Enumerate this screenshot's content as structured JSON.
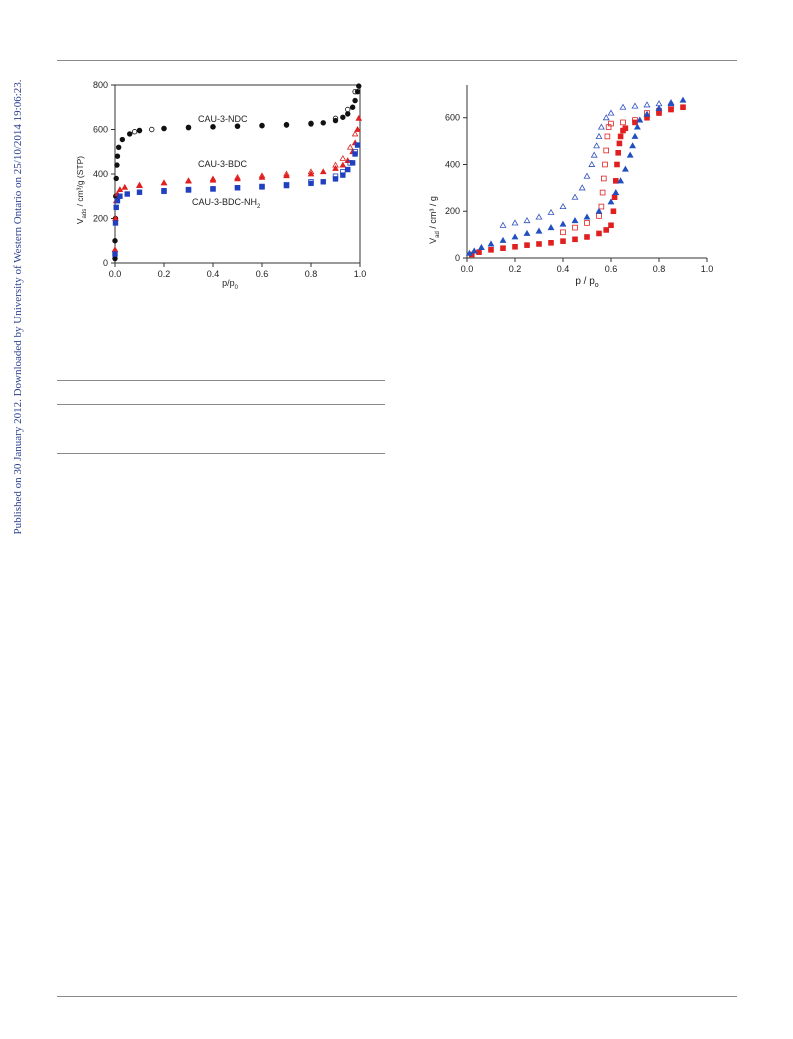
{
  "sidebar_note": "Published on 30 January 2012. Downloaded by University of Western Ontario on 25/10/2014 19:06:23.",
  "chart_data": [
    {
      "type": "scatter",
      "title": "",
      "xlabel": "p/p0",
      "ylabel": "V_ads / cm³/g (STP)",
      "xlim": [
        0,
        1.0
      ],
      "ylim": [
        0,
        800
      ],
      "xticks": [
        "0.0",
        "0.2",
        "0.4",
        "0.6",
        "0.8",
        "1.0"
      ],
      "yticks": [
        "0",
        "200",
        "400",
        "600",
        "800"
      ],
      "annotations": [
        "CAU-3-NDC",
        "CAU-3-BDC",
        "CAU-3-BDC-NH2"
      ],
      "series": [
        {
          "name": "CAU-3-NDC",
          "color": "#111111",
          "marker": "circle",
          "filled": true,
          "x": [
            0.0,
            0.0,
            0.002,
            0.003,
            0.005,
            0.008,
            0.01,
            0.015,
            0.03,
            0.06,
            0.1,
            0.2,
            0.3,
            0.4,
            0.5,
            0.6,
            0.7,
            0.8,
            0.85,
            0.9,
            0.93,
            0.95,
            0.97,
            0.98,
            0.99,
            0.995
          ],
          "y": [
            20,
            100,
            200,
            300,
            380,
            440,
            480,
            520,
            555,
            580,
            595,
            605,
            610,
            612,
            615,
            617,
            620,
            625,
            630,
            640,
            655,
            670,
            700,
            730,
            770,
            795
          ]
        },
        {
          "name": "CAU-3-NDC desorption",
          "color": "#111111",
          "marker": "circle",
          "filled": false,
          "x": [
            0.98,
            0.95,
            0.9,
            0.8,
            0.7,
            0.6,
            0.5,
            0.4,
            0.3,
            0.2,
            0.15,
            0.1,
            0.08
          ],
          "y": [
            770,
            690,
            650,
            628,
            622,
            618,
            615,
            612,
            608,
            604,
            600,
            596,
            590
          ]
        },
        {
          "name": "CAU-3-BDC",
          "color": "#e02020",
          "marker": "triangle",
          "filled": true,
          "x": [
            0.0,
            0.002,
            0.005,
            0.01,
            0.02,
            0.04,
            0.1,
            0.2,
            0.3,
            0.4,
            0.5,
            0.6,
            0.7,
            0.8,
            0.85,
            0.9,
            0.93,
            0.95,
            0.97,
            0.98,
            0.99,
            0.995
          ],
          "y": [
            60,
            200,
            280,
            310,
            330,
            340,
            350,
            360,
            368,
            372,
            378,
            385,
            392,
            400,
            410,
            425,
            440,
            460,
            500,
            540,
            600,
            650
          ]
        },
        {
          "name": "CAU-3-BDC desorption",
          "color": "#e02020",
          "marker": "triangle",
          "filled": false,
          "x": [
            0.98,
            0.96,
            0.93,
            0.9,
            0.8,
            0.7,
            0.6,
            0.5,
            0.4,
            0.3,
            0.2,
            0.1
          ],
          "y": [
            580,
            520,
            470,
            440,
            410,
            400,
            392,
            385,
            378,
            370,
            360,
            348
          ]
        },
        {
          "name": "CAU-3-BDC-NH2",
          "color": "#2040c0",
          "marker": "square",
          "filled": true,
          "x": [
            0.0,
            0.002,
            0.005,
            0.01,
            0.02,
            0.05,
            0.1,
            0.2,
            0.3,
            0.4,
            0.5,
            0.6,
            0.7,
            0.8,
            0.85,
            0.9,
            0.93,
            0.95,
            0.97,
            0.98,
            0.99
          ],
          "y": [
            40,
            180,
            250,
            280,
            300,
            310,
            318,
            325,
            330,
            333,
            338,
            342,
            348,
            358,
            365,
            378,
            395,
            420,
            450,
            490,
            530
          ]
        },
        {
          "name": "CAU-3-BDC-NH2 desorption",
          "color": "#2040c0",
          "marker": "square",
          "filled": false,
          "x": [
            0.98,
            0.96,
            0.93,
            0.9,
            0.8,
            0.7,
            0.6,
            0.5,
            0.4,
            0.3,
            0.2
          ],
          "y": [
            500,
            450,
            410,
            390,
            365,
            352,
            344,
            338,
            333,
            328,
            322
          ]
        }
      ]
    },
    {
      "type": "scatter",
      "title": "",
      "xlabel": "p / p0",
      "ylabel": "V_ad / cm³ / g",
      "xlim": [
        0,
        1.0
      ],
      "ylim": [
        0,
        740
      ],
      "xticks": [
        "0.0",
        "0.2",
        "0.4",
        "0.6",
        "0.8",
        "1.0"
      ],
      "yticks": [
        "0",
        "200",
        "400",
        "600"
      ],
      "series": [
        {
          "name": "red adsorption",
          "color": "#e02020",
          "marker": "square",
          "filled": true,
          "x": [
            0.02,
            0.05,
            0.1,
            0.15,
            0.2,
            0.25,
            0.3,
            0.35,
            0.4,
            0.45,
            0.5,
            0.55,
            0.58,
            0.6,
            0.61,
            0.615,
            0.62,
            0.625,
            0.63,
            0.635,
            0.64,
            0.65,
            0.66,
            0.7,
            0.75,
            0.8,
            0.85,
            0.9
          ],
          "y": [
            15,
            25,
            35,
            42,
            48,
            55,
            60,
            65,
            72,
            80,
            90,
            105,
            120,
            140,
            200,
            260,
            330,
            400,
            450,
            490,
            520,
            545,
            555,
            580,
            600,
            620,
            635,
            645
          ]
        },
        {
          "name": "red desorption",
          "color": "#e02020",
          "marker": "square",
          "filled": false,
          "x": [
            0.85,
            0.8,
            0.75,
            0.7,
            0.65,
            0.6,
            0.59,
            0.585,
            0.58,
            0.575,
            0.57,
            0.565,
            0.56,
            0.55,
            0.5,
            0.45,
            0.4
          ],
          "y": [
            640,
            630,
            620,
            590,
            580,
            575,
            560,
            520,
            460,
            400,
            340,
            280,
            220,
            180,
            150,
            130,
            110
          ]
        },
        {
          "name": "blue adsorption",
          "color": "#2050c0",
          "marker": "triangle",
          "filled": true,
          "x": [
            0.01,
            0.03,
            0.06,
            0.1,
            0.15,
            0.2,
            0.25,
            0.3,
            0.35,
            0.4,
            0.45,
            0.5,
            0.55,
            0.6,
            0.62,
            0.64,
            0.66,
            0.68,
            0.69,
            0.7,
            0.71,
            0.72,
            0.75,
            0.8,
            0.85,
            0.9
          ],
          "y": [
            20,
            30,
            45,
            60,
            75,
            90,
            105,
            115,
            130,
            145,
            160,
            175,
            200,
            240,
            280,
            330,
            380,
            440,
            480,
            520,
            560,
            590,
            615,
            640,
            660,
            675
          ]
        },
        {
          "name": "blue desorption",
          "color": "#3050c0",
          "marker": "triangle",
          "filled": false,
          "x": [
            0.85,
            0.8,
            0.75,
            0.7,
            0.65,
            0.6,
            0.58,
            0.56,
            0.55,
            0.54,
            0.53,
            0.52,
            0.5,
            0.48,
            0.45,
            0.4,
            0.35,
            0.3,
            0.25,
            0.2,
            0.15
          ],
          "y": [
            665,
            660,
            655,
            650,
            645,
            620,
            600,
            560,
            520,
            480,
            440,
            400,
            350,
            300,
            260,
            220,
            195,
            175,
            160,
            150,
            140
          ]
        }
      ]
    }
  ]
}
